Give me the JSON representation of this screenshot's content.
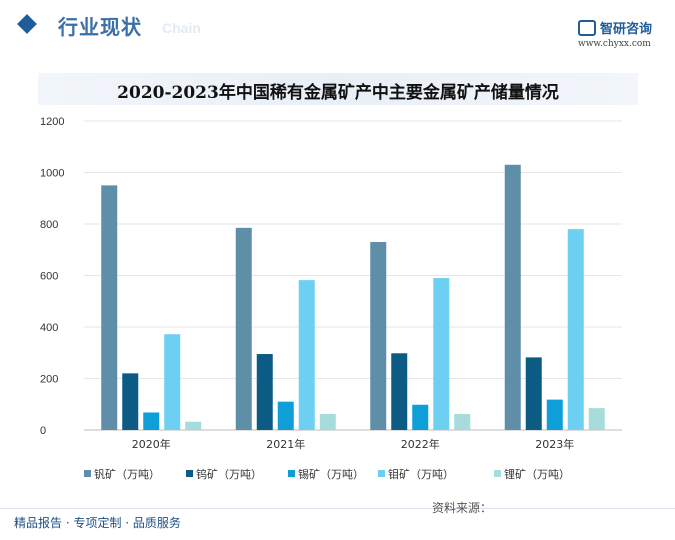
{
  "header": {
    "title": "行业现状",
    "watermark": "Chain",
    "brand": "智研咨询",
    "url": "www.chyxx.com"
  },
  "footer": {
    "left": "精品报告 · 专项定制 · 品质服务",
    "source": "资料来源："
  },
  "colors": {
    "header_accent": "#1e5c9a",
    "series": [
      "#5f8fa8",
      "#0c5b85",
      "#0e9ed8",
      "#6dcff1",
      "#a6dcdc"
    ]
  },
  "chart_data": {
    "type": "bar",
    "title": "2020-2023年中国稀有金属矿产中主要金属矿产储量情况",
    "categories": [
      "2020年",
      "2021年",
      "2022年",
      "2023年"
    ],
    "ylim": [
      0,
      1200
    ],
    "yticks": [
      0,
      200,
      400,
      600,
      800,
      1000,
      1200
    ],
    "grid": true,
    "legend_position": "bottom",
    "series": [
      {
        "name": "钒矿（万吨）",
        "values": [
          950,
          785,
          730,
          1030
        ]
      },
      {
        "name": "钨矿（万吨）",
        "values": [
          220,
          295,
          298,
          282
        ]
      },
      {
        "name": "锡矿（万吨）",
        "values": [
          68,
          110,
          98,
          118
        ]
      },
      {
        "name": "钼矿（万吨）",
        "values": [
          372,
          582,
          590,
          780
        ]
      },
      {
        "name": "锂矿（万吨）",
        "values": [
          32,
          62,
          62,
          85
        ]
      }
    ]
  }
}
